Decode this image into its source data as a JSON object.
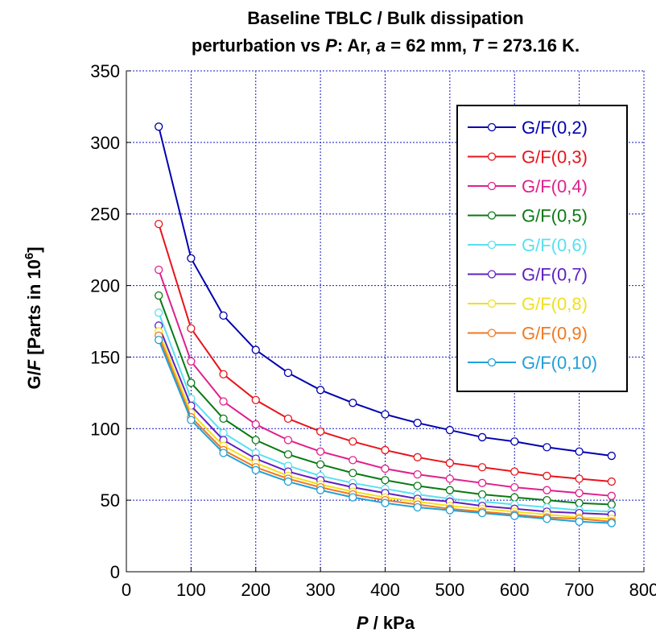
{
  "chart_data": {
    "type": "line",
    "title": {
      "line1": "Baseline TBLC / Bulk dissipation",
      "line2_parts": [
        {
          "text": "perturbation vs ",
          "italic": false
        },
        {
          "text": "P",
          "italic": true
        },
        {
          "text": ": Ar, ",
          "italic": false
        },
        {
          "text": "a",
          "italic": true
        },
        {
          "text": " = 62 mm, ",
          "italic": false
        },
        {
          "text": "T",
          "italic": true
        },
        {
          "text": " = 273.16 K.",
          "italic": false
        }
      ]
    },
    "xlabel": {
      "var": "P",
      "unit": " / kPa"
    },
    "ylabel": {
      "var": "G/",
      "var_italic": "F",
      "rest": " [Parts in 10",
      "sup": "6",
      "close": "]"
    },
    "xlim": [
      0,
      800
    ],
    "ylim": [
      0,
      350
    ],
    "xticks": [
      0,
      100,
      200,
      300,
      400,
      500,
      600,
      700,
      800
    ],
    "yticks": [
      0,
      50,
      100,
      150,
      200,
      250,
      300,
      350
    ],
    "grid": true,
    "legend_position": "top-right",
    "x": [
      50,
      100,
      150,
      200,
      250,
      300,
      350,
      400,
      450,
      500,
      550,
      600,
      650,
      700,
      750
    ],
    "series": [
      {
        "name": "G/F(0,2)",
        "color": "#0000b0",
        "values": [
          311,
          219,
          179,
          155,
          139,
          127,
          118,
          110,
          104,
          99,
          94,
          91,
          87,
          84,
          81
        ]
      },
      {
        "name": "G/F(0,3)",
        "color": "#e8141c",
        "values": [
          243,
          170,
          138,
          120,
          107,
          98,
          91,
          85,
          80,
          76,
          73,
          70,
          67,
          65,
          63
        ]
      },
      {
        "name": "G/F(0,4)",
        "color": "#e0208c",
        "values": [
          211,
          147,
          119,
          103,
          92,
          84,
          78,
          72,
          68,
          65,
          62,
          59,
          57,
          55,
          53
        ]
      },
      {
        "name": "G/F(0,5)",
        "color": "#0a7a14",
        "values": [
          193,
          132,
          107,
          92,
          82,
          75,
          69,
          64,
          60,
          57,
          54,
          52,
          50,
          48,
          47
        ]
      },
      {
        "name": "G/F(0,6)",
        "color": "#5ae0f0",
        "values": [
          181,
          121,
          97,
          83,
          74,
          67,
          62,
          58,
          54,
          51,
          49,
          47,
          45,
          43,
          42
        ]
      },
      {
        "name": "G/F(0,7)",
        "color": "#6020c0",
        "values": [
          172,
          116,
          92,
          79,
          70,
          64,
          59,
          55,
          51,
          49,
          46,
          44,
          42,
          41,
          40
        ]
      },
      {
        "name": "G/F(0,8)",
        "color": "#f0e020",
        "values": [
          168,
          111,
          88,
          76,
          67,
          61,
          56,
          52,
          49,
          46,
          44,
          42,
          40,
          38,
          37
        ]
      },
      {
        "name": "G/F(0,9)",
        "color": "#f07820",
        "values": [
          165,
          108,
          85,
          73,
          65,
          59,
          54,
          50,
          47,
          44,
          42,
          40,
          38,
          37,
          35
        ]
      },
      {
        "name": "G/F(0,10)",
        "color": "#20a0d8",
        "values": [
          162,
          106,
          83,
          71,
          63,
          57,
          52,
          48,
          45,
          43,
          41,
          39,
          37,
          35,
          34
        ]
      }
    ]
  }
}
